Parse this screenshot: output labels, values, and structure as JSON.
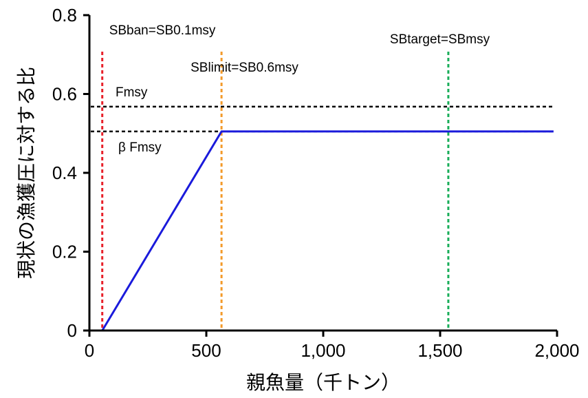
{
  "chart_data": {
    "type": "line",
    "title": "",
    "xlabel": "親魚量（千トン）",
    "ylabel": "現状の漁獲圧に対する比",
    "xlim": [
      0,
      2000
    ],
    "ylim": [
      0,
      0.8
    ],
    "x_ticks": [
      0,
      500,
      1000,
      1500,
      2000
    ],
    "x_tick_labels": [
      "0",
      "500",
      "1,000",
      "1,500",
      "2,000"
    ],
    "y_ticks": [
      0,
      0.2,
      0.4,
      0.6,
      0.8
    ],
    "y_tick_labels": [
      "0",
      "0.2",
      "0.4",
      "0.6",
      "0.8"
    ],
    "grid": false,
    "series": [
      {
        "color": "#1a1adb",
        "x": [
          55,
          565,
          1985
        ],
        "y": [
          0,
          0.505,
          0.505
        ]
      }
    ],
    "reference_lines": [
      {
        "orientation": "vertical",
        "x": 55,
        "label": "SBban=SB0.1msy",
        "color": "#e8212a",
        "style": "dashed"
      },
      {
        "orientation": "vertical",
        "x": 565,
        "label": "SBlimit=SB0.6msy",
        "color": "#f39a2a",
        "style": "dashed"
      },
      {
        "orientation": "vertical",
        "x": 1535,
        "label": "SBtarget=SBmsy",
        "color": "#1aae5a",
        "style": "dashed"
      },
      {
        "orientation": "horizontal",
        "y": 0.568,
        "label": "Fmsy",
        "color": "#000000",
        "style": "dashed"
      },
      {
        "orientation": "horizontal",
        "y": 0.505,
        "label": "β Fmsy",
        "color": "#000000",
        "style": "dashed"
      }
    ]
  }
}
